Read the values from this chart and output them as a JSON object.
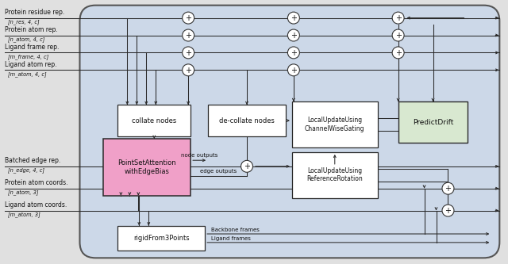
{
  "bg_panel": "#ccd8e8",
  "bg_outer": "#e8e8e8",
  "white": "#ffffff",
  "pink": "#f0a0c8",
  "green_box": "#d8e8d0",
  "dark": "#333333",
  "fig_w": 6.4,
  "fig_h": 3.33,
  "labels_top": [
    {
      "line1": "Protein residue rep.",
      "line2": "[n_res, 4, c]"
    },
    {
      "line1": "Protein atom rep.",
      "line2": "[n_atom, 4, c]"
    },
    {
      "line1": "Ligand frame rep.",
      "line2": "[m_frame, 4, c]"
    },
    {
      "line1": "Ligand atom rep.",
      "line2": "[m_atom, 4, c]"
    }
  ],
  "labels_bot": [
    {
      "line1": "Batched edge rep.",
      "line2": "[n_edge, 4, c]"
    },
    {
      "line1": "Protein atom coords.",
      "line2": "[n_atom, 3]"
    },
    {
      "line1": "Ligand atom coords.",
      "line2": "[m_atom, 3]"
    }
  ]
}
